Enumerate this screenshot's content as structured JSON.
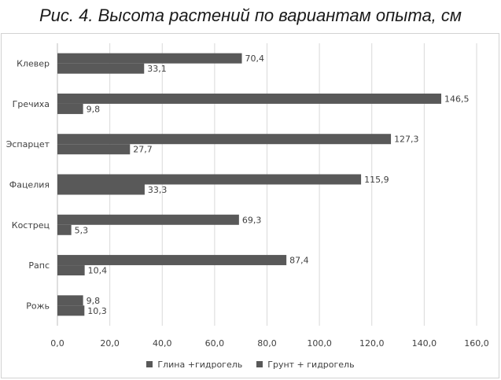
{
  "caption": "Рис. 4. Высота растений по вариантам опыта, см",
  "chart_data": {
    "type": "bar",
    "orientation": "horizontal",
    "categories": [
      "Клевер",
      "Гречиха",
      "Эспарцет",
      "Фацелия",
      "Кострец",
      "Рапс",
      "Рожь"
    ],
    "series": [
      {
        "name": "Глина +гидрогель",
        "values": [
          70.4,
          146.5,
          127.3,
          115.9,
          69.3,
          87.4,
          9.8
        ],
        "labels": [
          "70,4",
          "146,5",
          "127,3",
          "115,9",
          "69,3",
          "87,4",
          "9,8"
        ],
        "color": "#595959"
      },
      {
        "name": "Грунт + гидрогель",
        "values": [
          33.1,
          9.8,
          27.7,
          33.3,
          5.3,
          10.4,
          10.3
        ],
        "labels": [
          "33,1",
          "9,8",
          "27,7",
          "33,3",
          "5,3",
          "10,4",
          "10,3"
        ],
        "color": "#595959"
      }
    ],
    "xlim": [
      0,
      160
    ],
    "xticks": [
      "0,0",
      "20,0",
      "40,0",
      "60,0",
      "80,0",
      "100,0",
      "120,0",
      "140,0",
      "160,0"
    ],
    "grid": true,
    "legend_position": "bottom"
  }
}
